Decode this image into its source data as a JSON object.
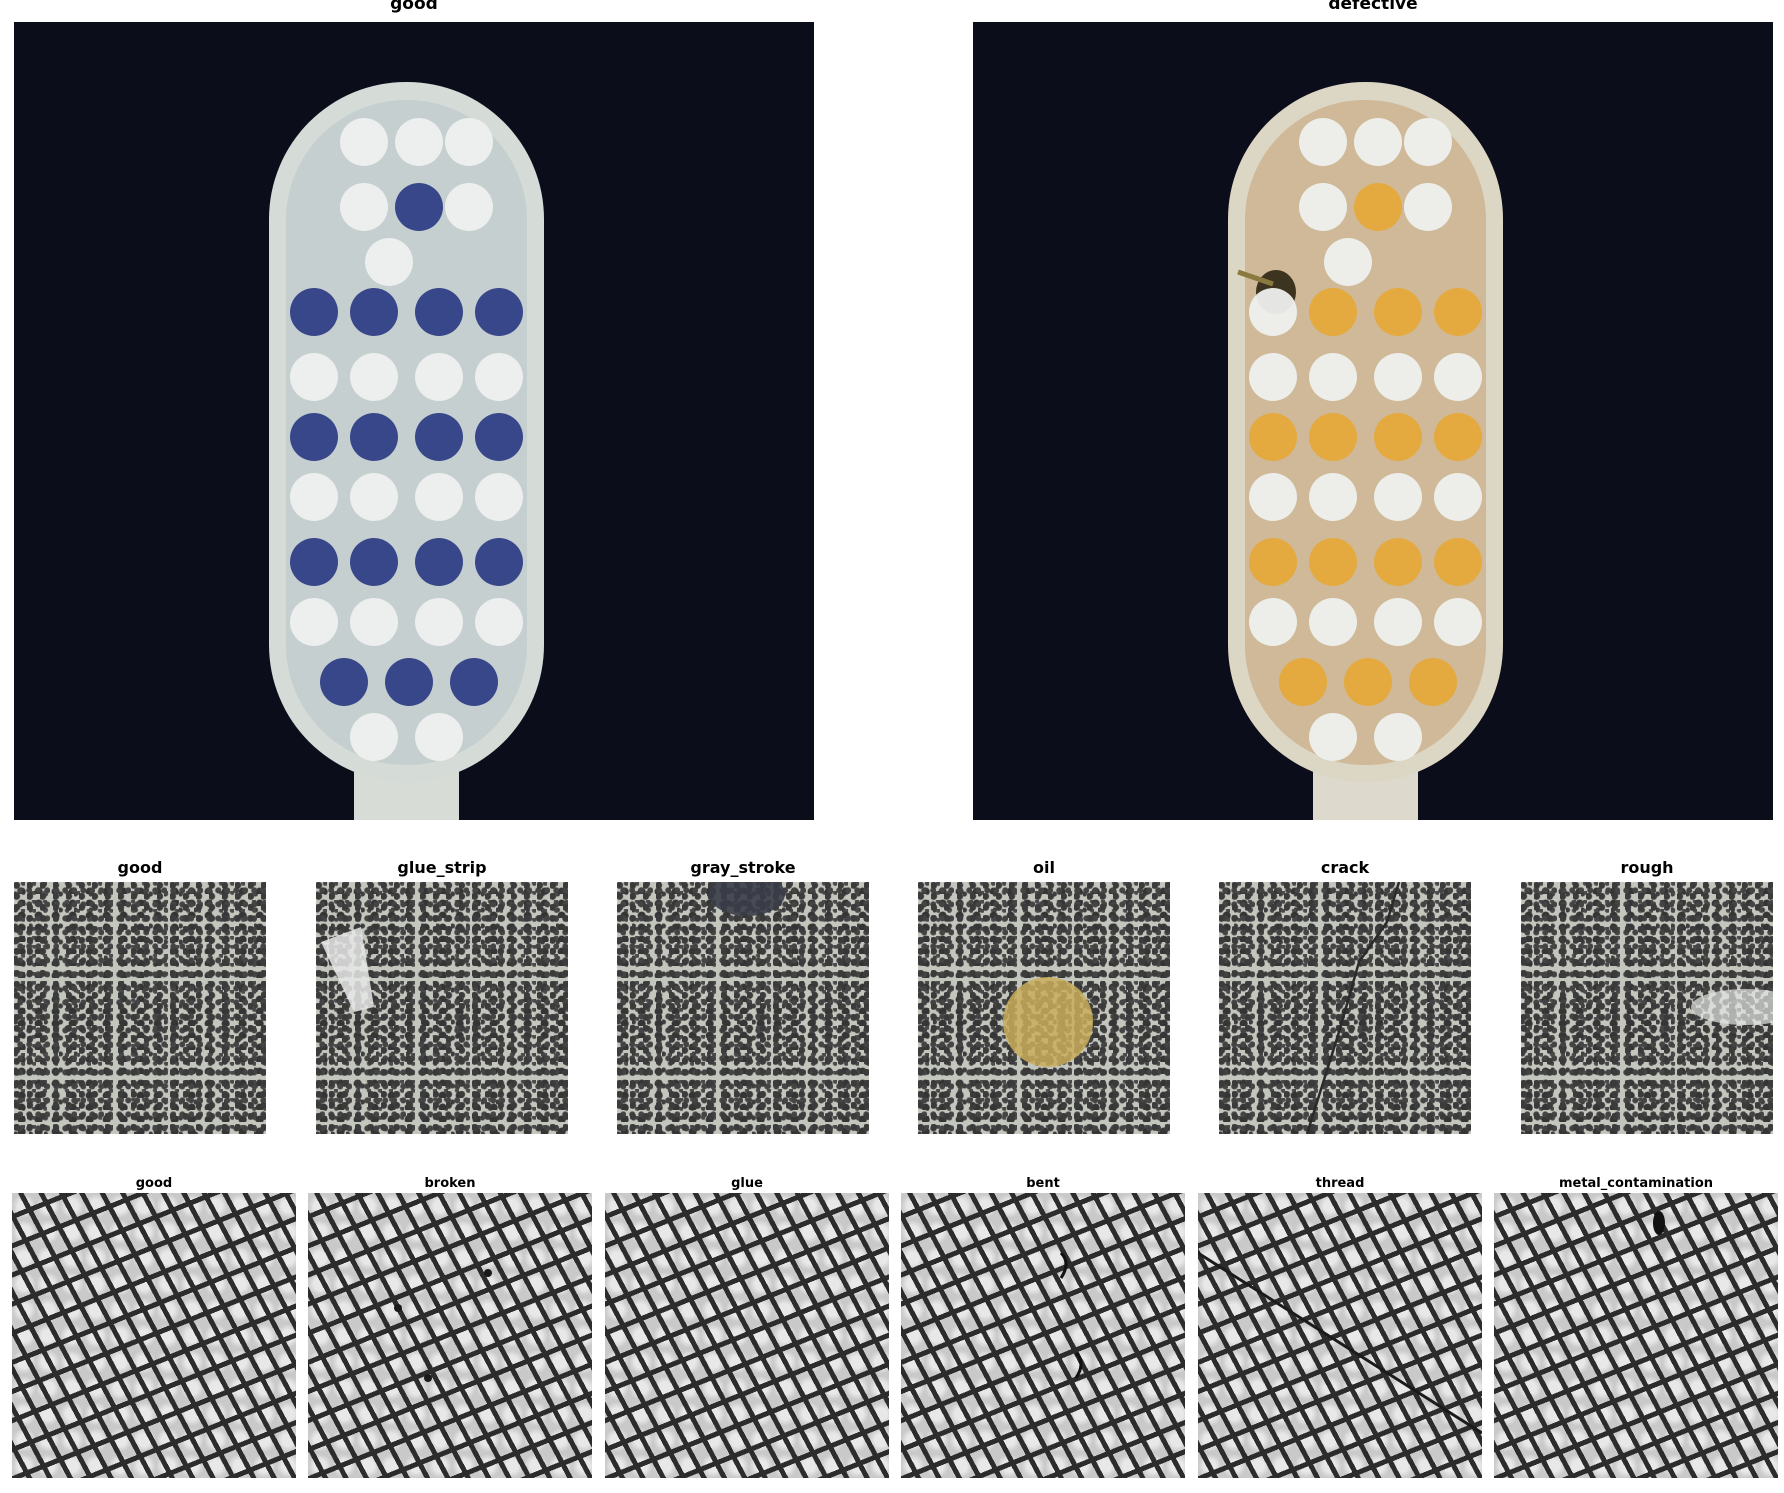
{
  "row1": [
    {
      "label": "good",
      "color": "#2f3f86"
    },
    {
      "label": "defective",
      "color": "#e6a93a"
    }
  ],
  "row2": [
    {
      "label": "good"
    },
    {
      "label": "glue_strip"
    },
    {
      "label": "gray_stroke"
    },
    {
      "label": "oil"
    },
    {
      "label": "crack"
    },
    {
      "label": "rough"
    }
  ],
  "row3": [
    {
      "label": "good"
    },
    {
      "label": "broken"
    },
    {
      "label": "glue"
    },
    {
      "label": "bent"
    },
    {
      "label": "thread"
    },
    {
      "label": "metal_contamination"
    }
  ]
}
